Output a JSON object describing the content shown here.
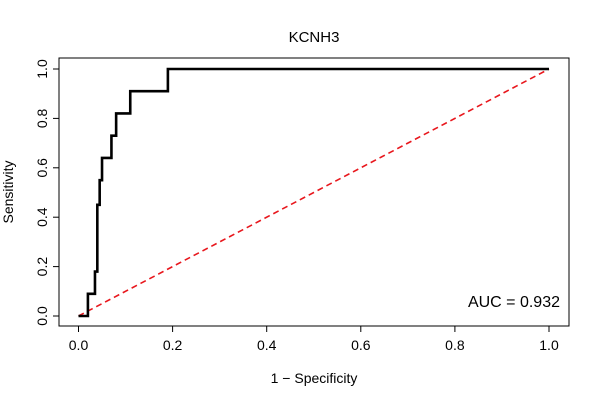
{
  "chart_data": {
    "type": "line",
    "title": "KCNH3",
    "xlabel": "1 − Specificity",
    "ylabel": "Sensitivity",
    "xlim": [
      0,
      1
    ],
    "ylim": [
      0,
      1
    ],
    "x_ticks": [
      "0.0",
      "0.2",
      "0.4",
      "0.6",
      "0.8",
      "1.0"
    ],
    "y_ticks": [
      "0.0",
      "0.2",
      "0.4",
      "0.6",
      "0.8",
      "1.0"
    ],
    "grid": false,
    "annotation": "AUC = 0.932",
    "series": [
      {
        "color": "#000000",
        "style": "solid",
        "points": [
          [
            0.0,
            0.0
          ],
          [
            0.02,
            0.0
          ],
          [
            0.02,
            0.09
          ],
          [
            0.035,
            0.09
          ],
          [
            0.035,
            0.18
          ],
          [
            0.04,
            0.18
          ],
          [
            0.04,
            0.45
          ],
          [
            0.045,
            0.45
          ],
          [
            0.045,
            0.55
          ],
          [
            0.05,
            0.55
          ],
          [
            0.05,
            0.64
          ],
          [
            0.07,
            0.64
          ],
          [
            0.07,
            0.73
          ],
          [
            0.08,
            0.73
          ],
          [
            0.08,
            0.82
          ],
          [
            0.11,
            0.82
          ],
          [
            0.11,
            0.91
          ],
          [
            0.19,
            0.91
          ],
          [
            0.19,
            1.0
          ],
          [
            1.0,
            1.0
          ]
        ]
      },
      {
        "color": "#e8171d",
        "style": "dashed",
        "points": [
          [
            0.0,
            0.0
          ],
          [
            1.0,
            1.0
          ]
        ]
      }
    ]
  }
}
